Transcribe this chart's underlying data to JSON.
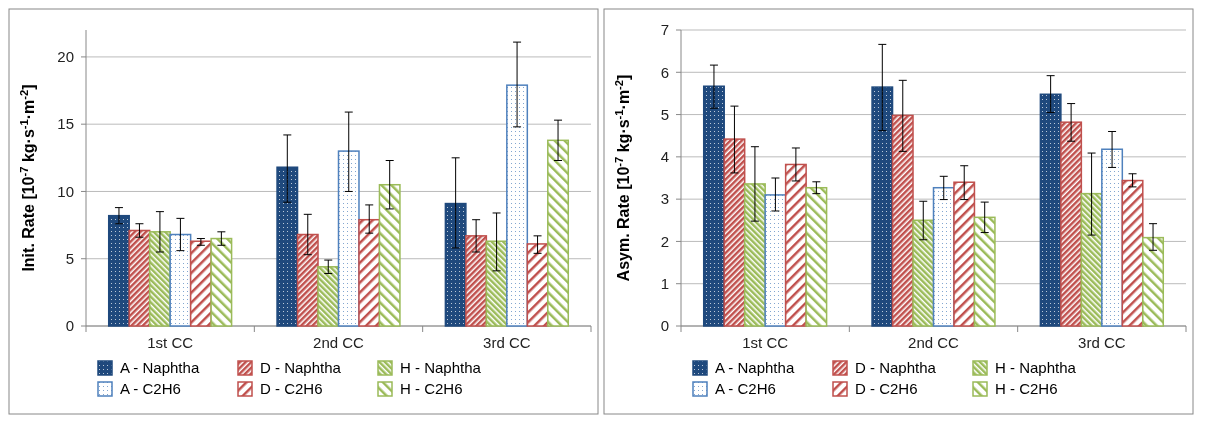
{
  "chart_data": [
    {
      "type": "bar",
      "ylabel": "Init. Rate [10$^{-7}$ kg·s$^{-1}$·m$^{-2}$]",
      "categories": [
        "1st CC",
        "2nd CC",
        "3rd CC"
      ],
      "ylim": [
        0,
        22
      ],
      "yticks": [
        0,
        5,
        10,
        15,
        20
      ],
      "grid": "y",
      "legend": "bottom",
      "series": [
        {
          "name": "A - Naphtha",
          "color": "#1f497d",
          "values": [
            8.2,
            11.8,
            9.1
          ],
          "errors": [
            [
              7.6,
              8.8
            ],
            [
              9.2,
              14.2
            ],
            [
              5.8,
              12.5
            ]
          ]
        },
        {
          "name": "D - Naphtha",
          "color": "#c0504d",
          "values": [
            7.1,
            6.8,
            6.7
          ],
          "errors": [
            [
              6.6,
              7.6
            ],
            [
              5.3,
              8.3
            ],
            [
              5.5,
              7.9
            ]
          ]
        },
        {
          "name": "H - Naphtha",
          "color": "#9bbb59",
          "values": [
            7.0,
            4.4,
            6.3
          ],
          "errors": [
            [
              5.5,
              8.5
            ],
            [
              3.9,
              4.9
            ],
            [
              4.1,
              8.4
            ]
          ]
        },
        {
          "name": "A - C2H6",
          "color": "#4f81bd",
          "values": [
            6.8,
            13.0,
            17.9
          ],
          "errors": [
            [
              5.6,
              8.0
            ],
            [
              10.0,
              15.9
            ],
            [
              14.8,
              21.1
            ]
          ]
        },
        {
          "name": "D - C2H6",
          "color": "#c0504d",
          "values": [
            6.3,
            7.9,
            6.1
          ],
          "errors": [
            [
              6.0,
              6.5
            ],
            [
              6.9,
              9.0
            ],
            [
              5.4,
              6.7
            ]
          ]
        },
        {
          "name": "H - C2H6",
          "color": "#9bbb59",
          "values": [
            6.5,
            10.5,
            13.8
          ],
          "errors": [
            [
              6.0,
              7.0
            ],
            [
              8.7,
              12.3
            ],
            [
              12.3,
              15.3
            ]
          ]
        }
      ]
    },
    {
      "type": "bar",
      "ylabel": "Asym. Rate [10$^{-7}$ kg·s$^{-1}$·m$^{-2}$]",
      "categories": [
        "1st CC",
        "2nd CC",
        "3rd CC"
      ],
      "ylim": [
        0,
        7
      ],
      "yticks": [
        0,
        1,
        2,
        3,
        4,
        5,
        6,
        7
      ],
      "grid": "y",
      "legend": "bottom",
      "series": [
        {
          "name": "A - Naphtha",
          "color": "#1f497d",
          "values": [
            5.67,
            5.65,
            5.48
          ],
          "errors": [
            [
              5.15,
              6.17
            ],
            [
              4.62,
              6.66
            ],
            [
              5.05,
              5.92
            ]
          ]
        },
        {
          "name": "D - Naphtha",
          "color": "#c0504d",
          "values": [
            4.42,
            4.98,
            4.82
          ],
          "errors": [
            [
              3.62,
              5.2
            ],
            [
              4.13,
              5.81
            ],
            [
              4.37,
              5.26
            ]
          ]
        },
        {
          "name": "H - Naphtha",
          "color": "#9bbb59",
          "values": [
            3.36,
            2.5,
            3.13
          ],
          "errors": [
            [
              2.48,
              4.24
            ],
            [
              2.04,
              2.95
            ],
            [
              2.15,
              4.09
            ]
          ]
        },
        {
          "name": "A - C2H6",
          "color": "#4f81bd",
          "values": [
            3.1,
            3.27,
            4.18
          ],
          "errors": [
            [
              2.72,
              3.5
            ],
            [
              2.99,
              3.54
            ],
            [
              3.75,
              4.6
            ]
          ]
        },
        {
          "name": "D - C2H6",
          "color": "#c0504d",
          "values": [
            3.82,
            3.4,
            3.44
          ],
          "errors": [
            [
              3.43,
              4.21
            ],
            [
              2.99,
              3.79
            ],
            [
              3.29,
              3.6
            ]
          ]
        },
        {
          "name": "H - C2H6",
          "color": "#9bbb59",
          "values": [
            3.27,
            2.57,
            2.09
          ],
          "errors": [
            [
              3.13,
              3.41
            ],
            [
              2.21,
              2.93
            ],
            [
              1.79,
              2.42
            ]
          ]
        }
      ]
    }
  ]
}
